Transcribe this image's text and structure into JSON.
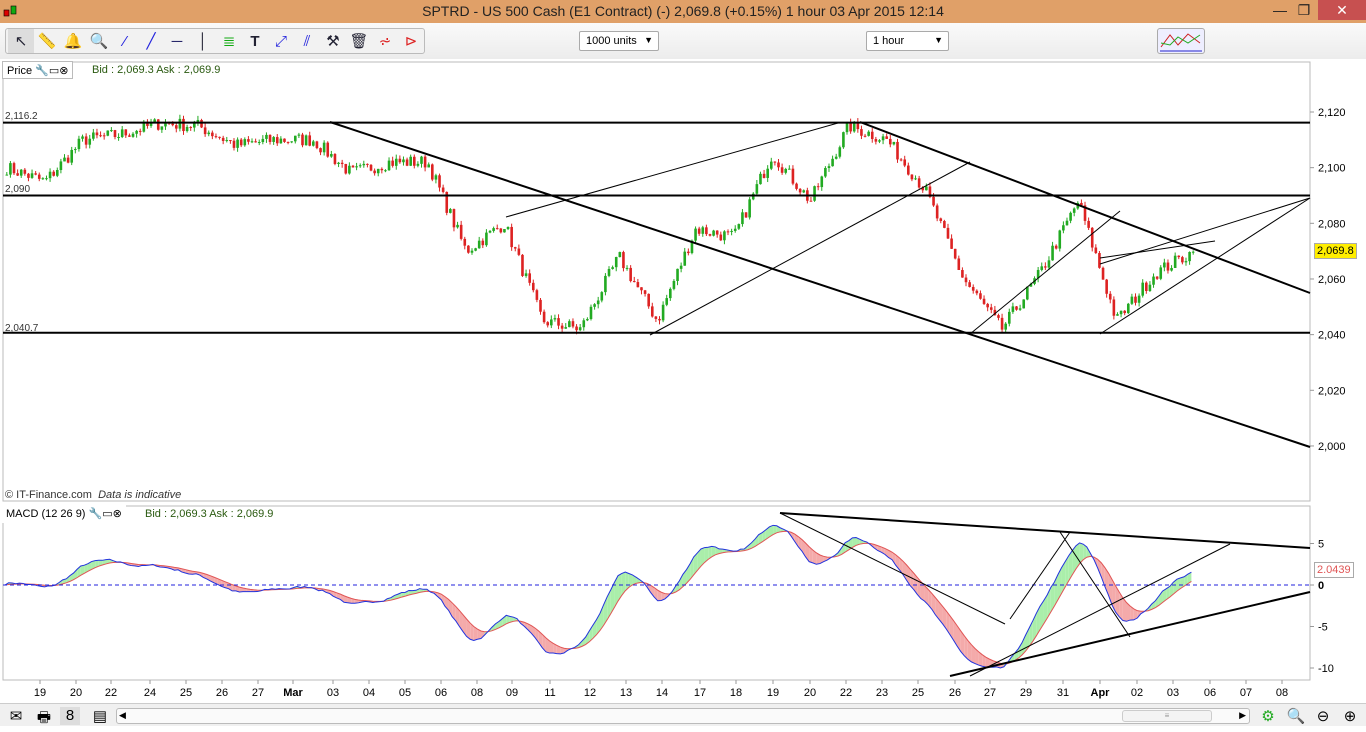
{
  "window": {
    "title": "SPTRD - US 500 Cash (E1 Contract) (-)    2,069.8 (+0.15%)    1 hour  03 Apr 2015 12:14",
    "minimize": "—",
    "restore": "❐",
    "close": "✕"
  },
  "toolbar": {
    "tools": [
      "pointer-icon",
      "ruler-icon",
      "alert-bell-icon",
      "zoom-icon",
      "line-icon",
      "ray-icon",
      "horizontal-line-icon",
      "vertical-line-icon",
      "fibonacci-icon",
      "text-icon",
      "channel-icon",
      "parallel-lines-icon",
      "tools-icon",
      "trash-icon",
      "range-icon",
      "triangle-icon"
    ],
    "units": "1000 units",
    "interval": "1 hour"
  },
  "price_panel": {
    "label": "Price",
    "bid_ask": "Bid : 2,069.3 Ask : 2,069.9",
    "footer": "© IT-Finance.com",
    "footer_note": "Data is indicative",
    "current": "2,069.8",
    "level_labels": [
      "2,116.2",
      "2,090",
      "2,040.7"
    ]
  },
  "macd_panel": {
    "label": "MACD (12 26 9)",
    "bid_ask": "Bid : 2,069.3 Ask : 2,069.9",
    "current": "2.0439"
  },
  "colors": {
    "up": "#22aa22",
    "down": "#dd2222",
    "macd": "#2233dd",
    "signal": "#e05555",
    "fill_pos": "#aaeeaa",
    "fill_neg": "#f4aaaa",
    "current_bg": "#ffee00"
  },
  "chart_data": {
    "type": "candlestick",
    "price_axis": {
      "ticks": [
        2000,
        2020,
        2040,
        2060,
        2080,
        2100,
        2120
      ],
      "labels": [
        "2,000",
        "2,020",
        "2,040",
        "2,060",
        "2,080",
        "2,100",
        "2,120"
      ],
      "range": [
        1990,
        2135
      ]
    },
    "macd_axis": {
      "ticks": [
        5,
        0,
        -5,
        -10
      ],
      "labels": [
        "5",
        "0",
        "-5",
        "-10"
      ]
    },
    "x_ticks": [
      "19",
      "20",
      "22",
      "24",
      "25",
      "26",
      "27",
      "Mar",
      "03",
      "04",
      "05",
      "06",
      "08",
      "09",
      "11",
      "12",
      "13",
      "14",
      "17",
      "18",
      "19",
      "20",
      "22",
      "23",
      "25",
      "26",
      "27",
      "29",
      "31",
      "Apr",
      "02",
      "03",
      "06",
      "07",
      "08"
    ],
    "approx_close_path": [
      2100,
      2095,
      2110,
      2112,
      2116,
      2115,
      2108,
      2110,
      2110,
      2098,
      2102,
      2102,
      2070,
      2080,
      2045,
      2042,
      2068,
      2045,
      2078,
      2075,
      2105,
      2088,
      2115,
      2110,
      2092,
      2060,
      2042,
      2062,
      2088,
      2045,
      2062,
      2069.8
    ],
    "horizontal_levels": [
      2116.2,
      2090,
      2040.7
    ]
  },
  "bottom": {
    "icons": [
      "mail-icon",
      "print-icon",
      "link-icon",
      "report-icon"
    ],
    "scroll_grip": "≡",
    "right_icons": [
      "settings-icon",
      "zoom-fit-icon",
      "zoom-out-icon",
      "zoom-in-icon"
    ]
  }
}
